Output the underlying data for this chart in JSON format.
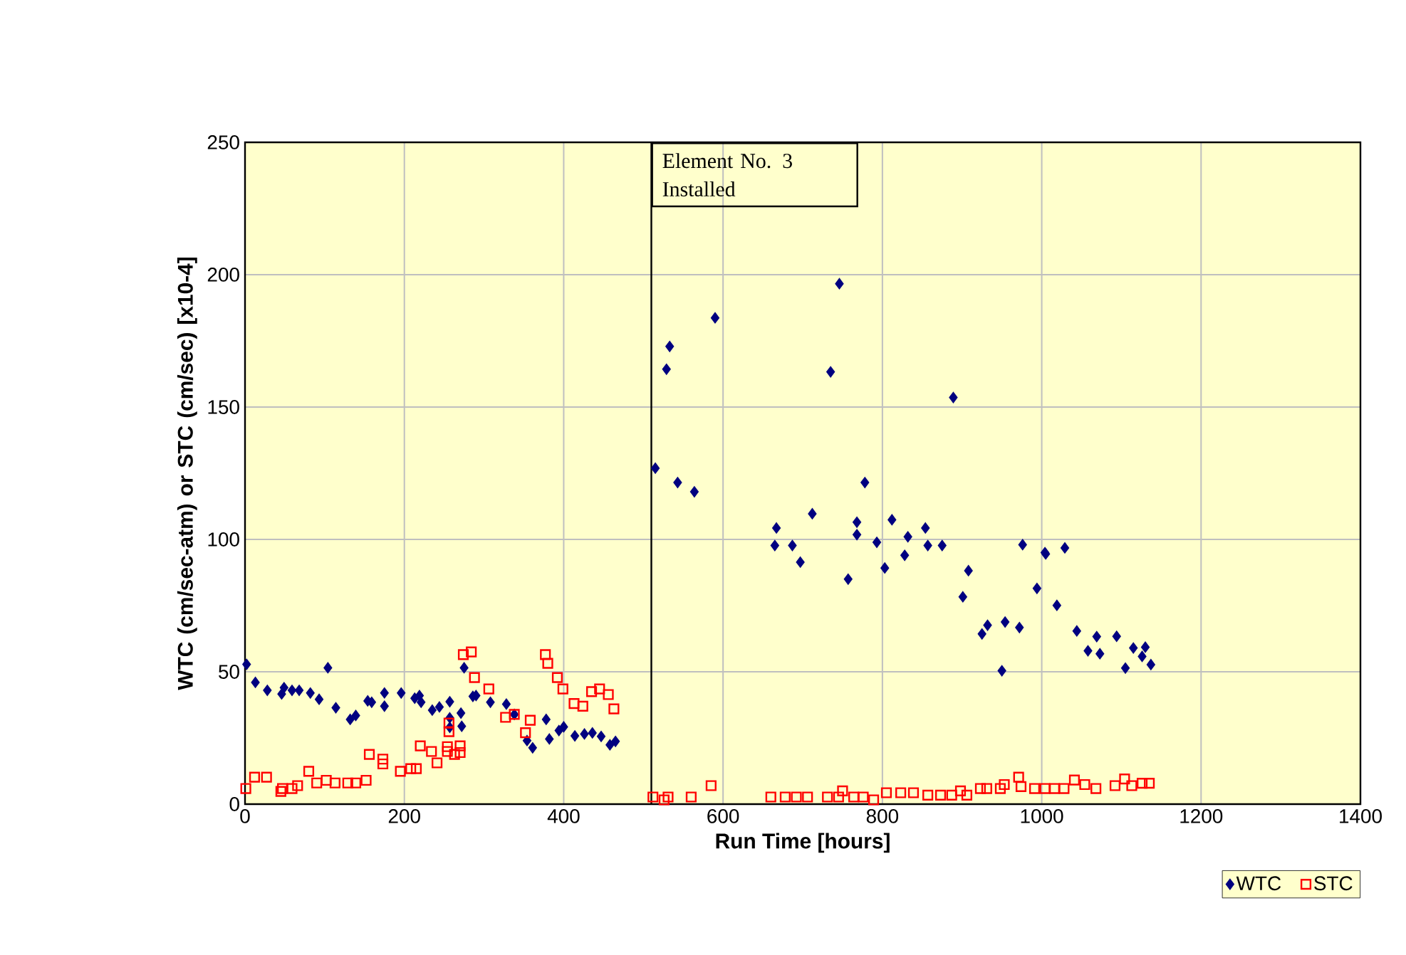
{
  "chart_data": {
    "type": "scatter",
    "xlabel": "Run Time [hours]",
    "ylabel": "WTC (cm/sec-atm) or STC (cm/sec) [x10-4]",
    "xlim": [
      0,
      1400
    ],
    "xticks": [
      0,
      200,
      400,
      600,
      800,
      1000,
      1200,
      1400
    ],
    "ylim": [
      0,
      250
    ],
    "yticks": [
      0,
      50,
      100,
      150,
      200,
      250
    ],
    "grid": true,
    "legend": "bottom right",
    "ref_lines": [
      {
        "axis": "x",
        "value": 510,
        "label": "Element No. 3 Installed",
        "color": "#000000"
      }
    ],
    "series": [
      {
        "name": "WTC",
        "color": "#000080",
        "marker": "diamond",
        "x": [
          2,
          13,
          28,
          46,
          49,
          59,
          68,
          82,
          93,
          104,
          114,
          132,
          139,
          154,
          159,
          175,
          175,
          196,
          213,
          219,
          221,
          235,
          244,
          257,
          257,
          257,
          272,
          271,
          275,
          286,
          290,
          308,
          328,
          338,
          354,
          361,
          378,
          382,
          394,
          400,
          414,
          426,
          436,
          447,
          458,
          465,
          515,
          533,
          529,
          543,
          564,
          590,
          667,
          665,
          687,
          697,
          712,
          746,
          735,
          778,
          768,
          768,
          793,
          757,
          803,
          812,
          828,
          832,
          854,
          857,
          875,
          889,
          908,
          901,
          925,
          932,
          954,
          950,
          972,
          976,
          994,
          1005,
          1004,
          1029,
          1019,
          1044,
          1058,
          1069,
          1073,
          1094,
          1105,
          1115,
          1130,
          1126,
          1137
        ],
        "values": [
          52.8,
          46,
          43,
          41.6,
          44,
          43,
          43,
          42,
          39.6,
          51.5,
          36.4,
          32,
          33.5,
          39,
          38.5,
          42,
          37,
          42,
          40,
          41,
          38.5,
          35.5,
          36.7,
          38.7,
          32.6,
          29,
          29.4,
          34.4,
          51.5,
          40.7,
          41,
          38.5,
          37.8,
          33.9,
          24,
          21.3,
          32,
          24.6,
          27.8,
          29.2,
          25.8,
          26.5,
          26.9,
          25.6,
          22.4,
          23.7,
          126.9,
          172.9,
          164.3,
          121.5,
          118,
          183.7,
          104.3,
          97.7,
          97.7,
          91.4,
          109.7,
          196.6,
          163.3,
          121.5,
          106.5,
          101.8,
          98.9,
          85,
          89.2,
          107.4,
          94,
          101,
          104.3,
          97.7,
          97.7,
          153.6,
          88.2,
          78.3,
          64.3,
          67.6,
          68.8,
          50.4,
          66.7,
          98,
          81.5,
          94.5,
          95,
          96.8,
          75.1,
          65.4,
          57.9,
          63.3,
          56.8,
          63.4,
          51.4,
          59,
          59.3,
          55.8,
          52.7
        ]
      },
      {
        "name": "STC",
        "color": "#ff0000",
        "marker": "square",
        "x": [
          1,
          12,
          27,
          45,
          47,
          59,
          66,
          80,
          90,
          102,
          113,
          129,
          139,
          152,
          156,
          173,
          173,
          195,
          208,
          215,
          220,
          234,
          241,
          254,
          254,
          256,
          256,
          263,
          270,
          270,
          274,
          284,
          288,
          306,
          327,
          338,
          352,
          358,
          377,
          380,
          392,
          399,
          413,
          424,
          435,
          445,
          456,
          463,
          512,
          526,
          531,
          560,
          585,
          660,
          678,
          692,
          706,
          731,
          745,
          750,
          764,
          776,
          789,
          805,
          823,
          839,
          857,
          873,
          887,
          898,
          906,
          923,
          931,
          948,
          953,
          971,
          974,
          991,
          1004,
          1016,
          1028,
          1041,
          1054,
          1068,
          1092,
          1104,
          1113,
          1126,
          1135
        ],
        "values": [
          5.9,
          10.2,
          10.2,
          4.8,
          5.9,
          5.9,
          7,
          12.4,
          8,
          9,
          8,
          8,
          8,
          9,
          18.8,
          17,
          15.2,
          12.4,
          13.4,
          13.4,
          22,
          19.9,
          15.6,
          21.7,
          19.9,
          30.6,
          27.4,
          18.8,
          22,
          19.5,
          56.5,
          57.5,
          47.8,
          43.5,
          32.8,
          33.9,
          27,
          31.7,
          56.5,
          53.2,
          47.8,
          43.5,
          38,
          37,
          42.5,
          43.5,
          41.4,
          36,
          2.7,
          1.6,
          2.7,
          2.7,
          7,
          2.7,
          2.7,
          2.7,
          2.7,
          2.7,
          2.7,
          5,
          2.7,
          2.7,
          1.6,
          4.3,
          4.3,
          4.3,
          3.4,
          3.4,
          3.4,
          5,
          3.4,
          5.9,
          5.9,
          5.9,
          7.4,
          10.2,
          6.6,
          5.9,
          5.9,
          5.9,
          5.9,
          9.1,
          7.4,
          5.9,
          7,
          9.5,
          7,
          7.9,
          7.9
        ]
      }
    ]
  }
}
